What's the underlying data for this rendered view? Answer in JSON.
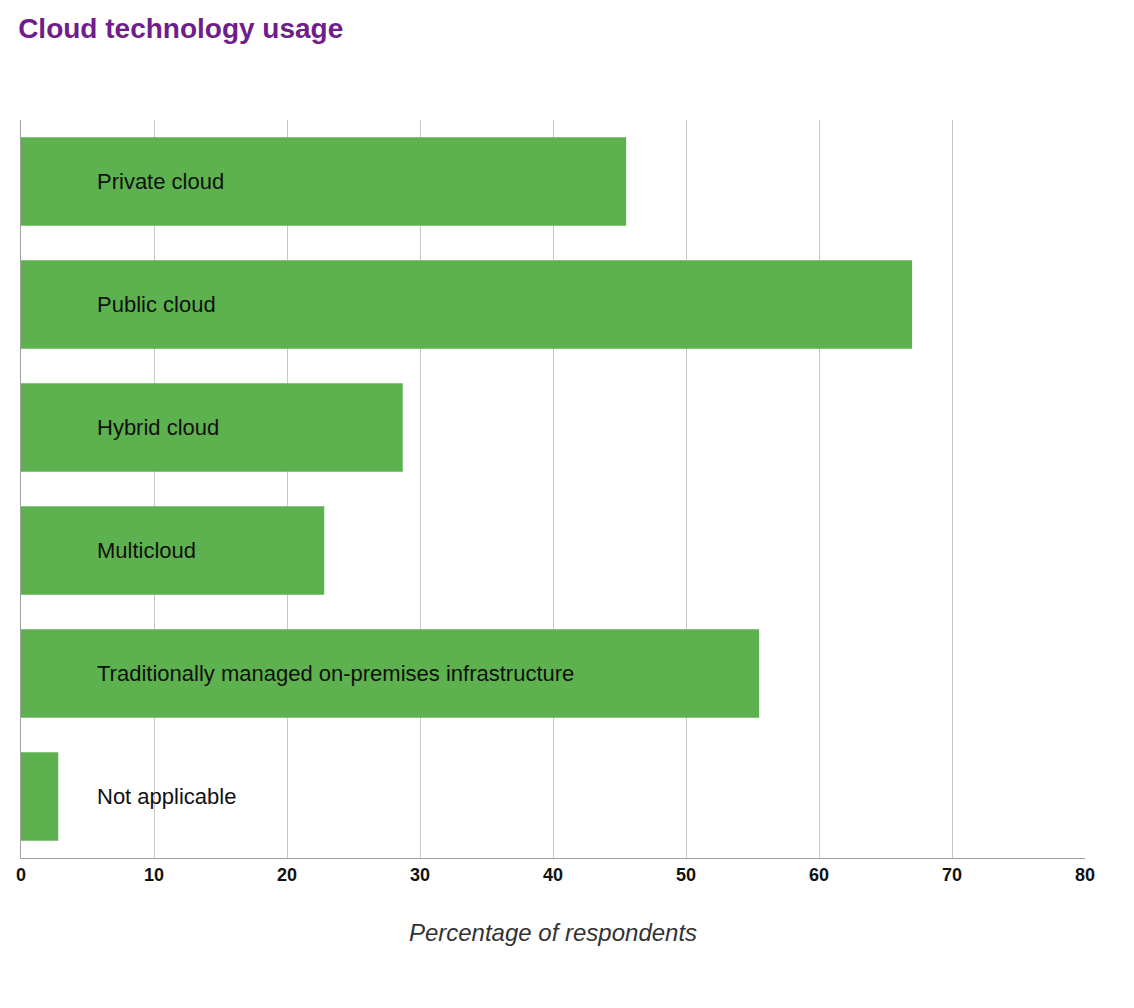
{
  "chart_data": {
    "type": "bar",
    "title": "Cloud technology usage",
    "x_label": "Percentage of respondents",
    "categories": [
      "Private cloud",
      "Public cloud",
      "Hybrid cloud",
      "Multicloud",
      "Traditionally managed on-premises infrastructure",
      "Not applicable"
    ],
    "values": [
      45.5,
      67,
      28.7,
      22.8,
      55.5,
      2.8
    ],
    "color": "#5db14e",
    "orientation": "horizontal",
    "xlim": [
      0,
      80
    ],
    "xticks": [
      0,
      10,
      20,
      30,
      40,
      50,
      60,
      70,
      80
    ],
    "grid": true,
    "tick_labels": "x"
  }
}
